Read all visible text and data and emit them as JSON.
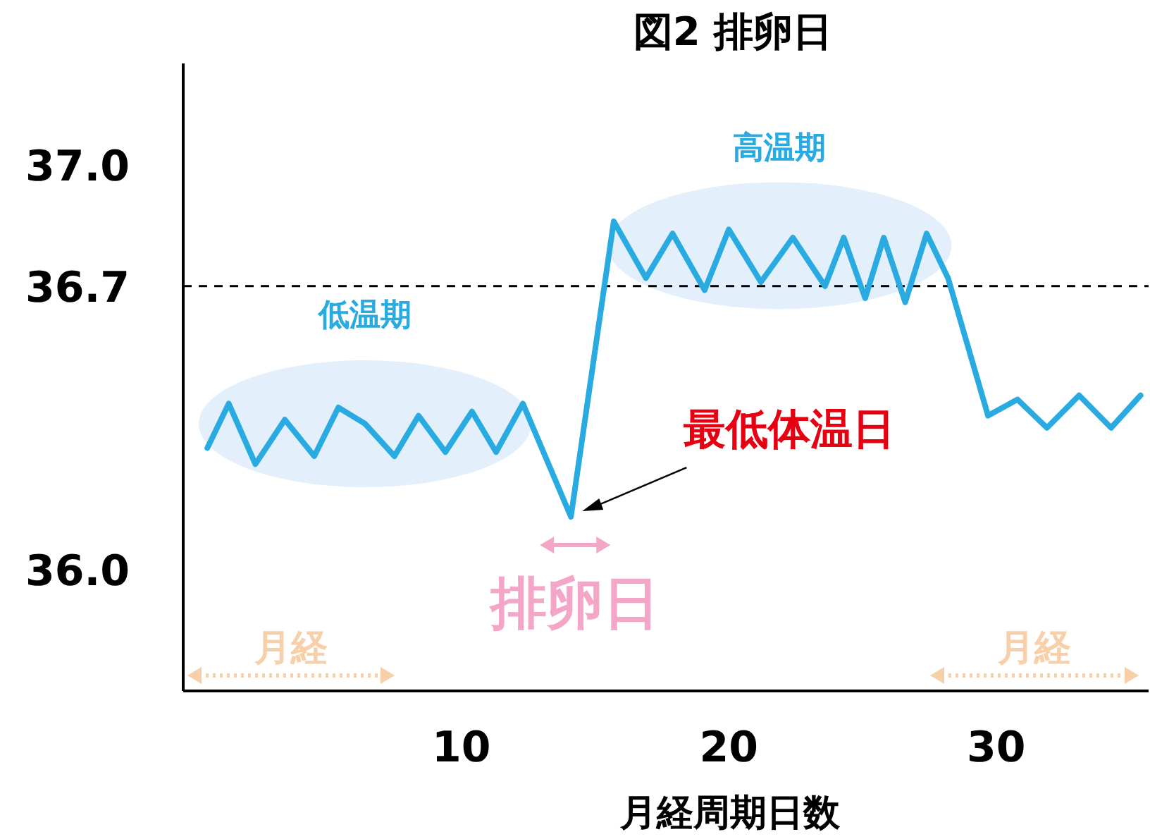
{
  "chart_data": {
    "type": "line",
    "title": "図2 排卵日",
    "xlabel": "月経周期日数",
    "color": "#29abe2",
    "x": [
      0.5,
      1.3,
      2.3,
      3.4,
      4.5,
      5.4,
      6.4,
      7.5,
      8.4,
      9.4,
      10.4,
      11.3,
      12.3,
      14.1,
      15.7,
      16.9,
      17.9,
      19.1,
      20.0,
      21.2,
      22.4,
      23.6,
      24.3,
      25.1,
      25.8,
      26.6,
      27.4,
      28.2,
      29.7,
      30.8,
      31.9,
      33.1,
      34.3,
      35.4
    ],
    "values": [
      36.3,
      36.41,
      36.26,
      36.37,
      36.28,
      36.4,
      36.36,
      36.28,
      36.38,
      36.29,
      36.39,
      36.29,
      36.41,
      36.13,
      36.86,
      36.72,
      36.83,
      36.69,
      36.84,
      36.71,
      36.82,
      36.7,
      36.82,
      36.67,
      36.82,
      36.66,
      36.83,
      36.72,
      36.38,
      36.42,
      36.35,
      36.43,
      36.35,
      36.43
    ],
    "xlim": [
      -0.4,
      35.7
    ],
    "ylim": [
      35.7,
      37.25
    ],
    "xticks": [
      10,
      20,
      30
    ],
    "yticks": [
      {
        "value": 36,
        "label": "36.0"
      },
      {
        "value": 36.7,
        "label": "36.7"
      },
      {
        "value": 37,
        "label": "37.0"
      }
    ],
    "ref_lines": [
      {
        "axis": "y",
        "value": 36.7,
        "color": "#000000",
        "line_style": "dashed"
      }
    ],
    "annotations": [
      {
        "text": "低温期",
        "x": 6.4,
        "y": 36.36
      },
      {
        "text": "高温期",
        "x": 21.9,
        "y": 36.8
      },
      "最低体温日",
      {
        "text": "排卵日",
        "x": 14.1,
        "y": 36.13
      },
      "月経",
      "月経"
    ]
  }
}
